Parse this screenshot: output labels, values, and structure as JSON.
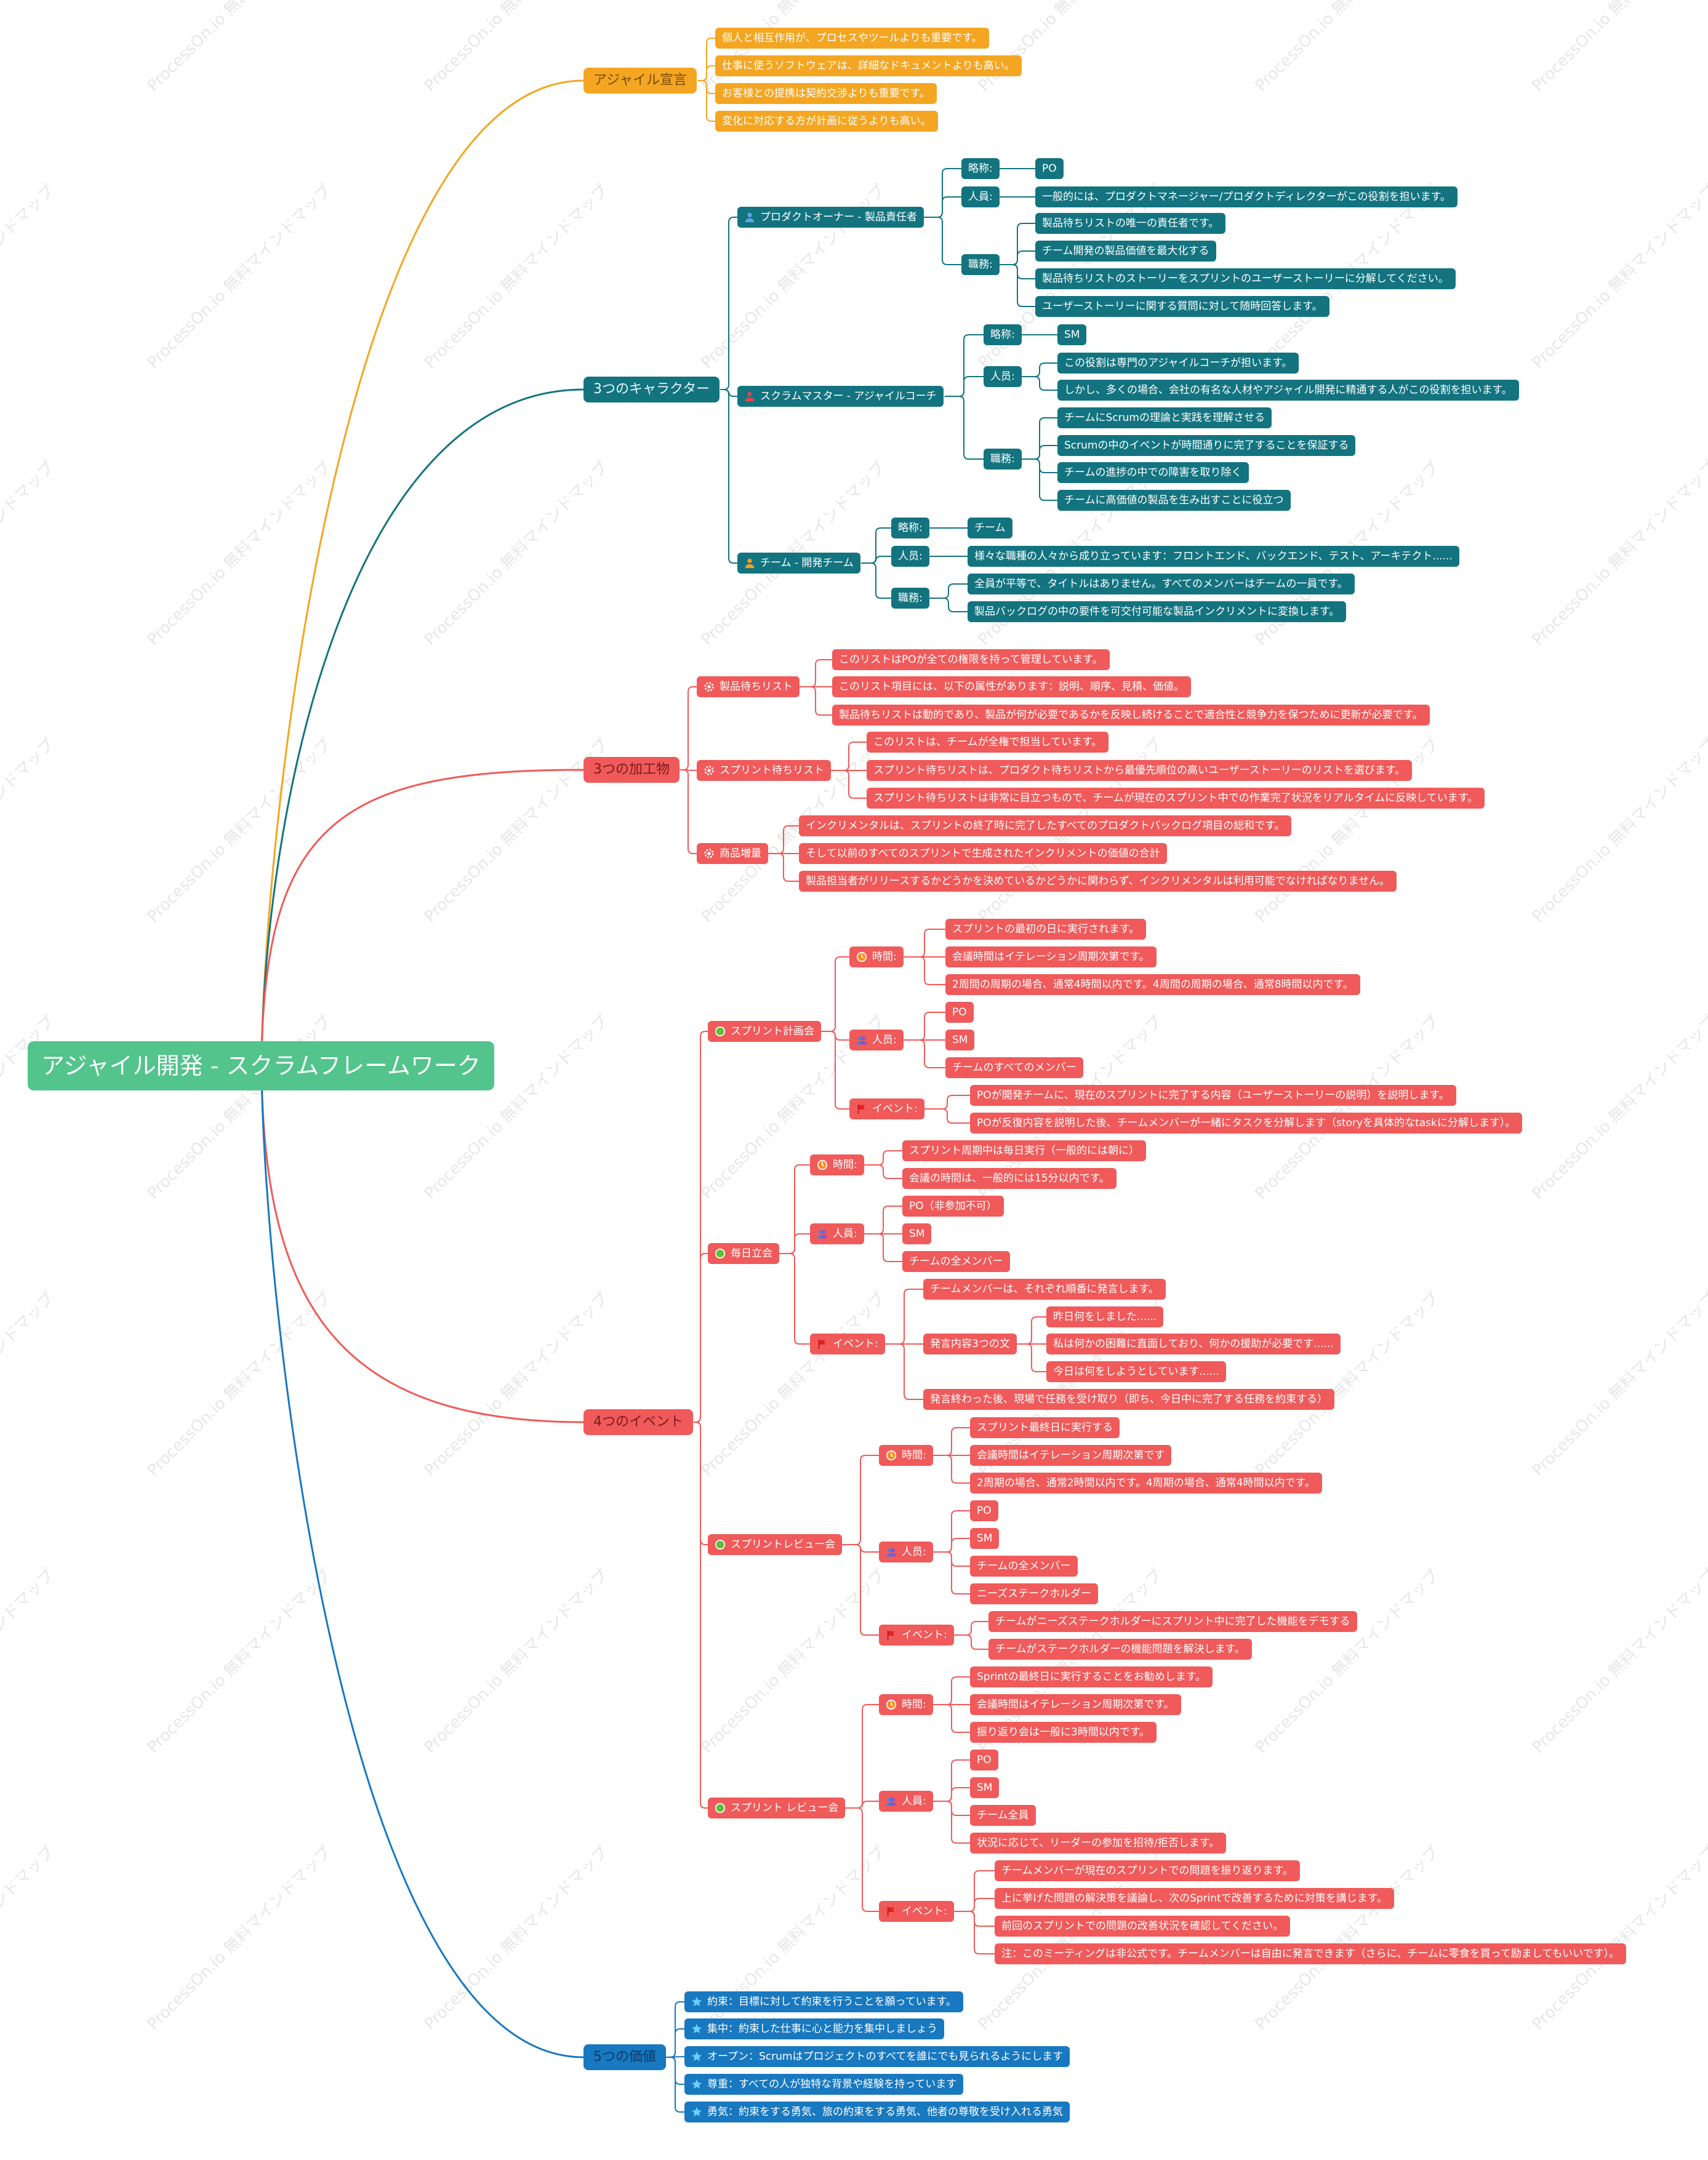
{
  "root": {
    "label": "アジャイル開発 - スクラムフレームワーク",
    "color": "#52c48c"
  },
  "watermark": "ProcessOn.io 無料マインドマップ",
  "branches": [
    {
      "id": "manifesto",
      "label": "アジャイル宣言",
      "color": "#f4a622",
      "text_color": "#7a4a00",
      "items": [
        {
          "label": "個人と相互作用が、プロセスやツールよりも重要です。"
        },
        {
          "label": "仕事に使うソフトウェアは、詳細なドキュメントよりも高い。"
        },
        {
          "label": "お客様との提携は契約交渉よりも重要です。"
        },
        {
          "label": "変化に対応する方が計画に従うよりも高い。"
        }
      ]
    },
    {
      "id": "roles",
      "label": "3つのキャラクター",
      "color": "#137480",
      "text_color": "#e8f7f8",
      "items": [
        {
          "label": "プロダクトオーナー - 製品責任者",
          "icon": "person-blue-icon",
          "children": [
            {
              "label": "略称:",
              "children": [
                {
                  "label": "PO"
                }
              ]
            },
            {
              "label": "人員:",
              "children": [
                {
                  "label": "一般的には、プロダクトマネージャー/プロダクトディレクターがこの役割を担います。"
                }
              ]
            },
            {
              "label": "職務:",
              "children": [
                {
                  "label": "製品待ちリストの唯一の責任者です。"
                },
                {
                  "label": "チーム開発の製品価値を最大化する"
                },
                {
                  "label": "製品待ちリストのストーリーをスプリントのユーザーストーリーに分解してください。"
                },
                {
                  "label": "ユーザーストーリーに関する質問に対して随時回答します。"
                }
              ]
            }
          ]
        },
        {
          "label": "スクラムマスター - アジャイルコーチ",
          "icon": "person-red-icon",
          "children": [
            {
              "label": "略称:",
              "children": [
                {
                  "label": "SM"
                }
              ]
            },
            {
              "label": "人员:",
              "children": [
                {
                  "label": "この役割は専門のアジャイルコーチが担います。"
                },
                {
                  "label": "しかし、多くの場合、会社の有名な人材やアジャイル開発に精通する人がこの役割を担います。"
                }
              ]
            },
            {
              "label": "職務:",
              "children": [
                {
                  "label": "チームにScrumの理論と実践を理解させる"
                },
                {
                  "label": "Scrumの中のイベントが時間通りに完了することを保証する"
                },
                {
                  "label": "チームの進捗の中での障害を取り除く"
                },
                {
                  "label": "チームに高価値の製品を生み出すことに役立つ"
                }
              ]
            }
          ]
        },
        {
          "label": "チーム - 開発チーム",
          "icon": "person-orange-icon",
          "children": [
            {
              "label": "略称:",
              "children": [
                {
                  "label": "チーム"
                }
              ]
            },
            {
              "label": "人员:",
              "children": [
                {
                  "label": "様々な職種の人々から成り立っています：フロントエンド、バックエンド、テスト、アーキテクト......"
                }
              ]
            },
            {
              "label": "職務:",
              "children": [
                {
                  "label": "全員が平等で、タイトルはありません。すべてのメンバーはチームの一員です。"
                },
                {
                  "label": "製品バックログの中の要件を可交付可能な製品インクリメントに変換します。"
                }
              ]
            }
          ]
        }
      ]
    },
    {
      "id": "artifacts",
      "label": "3つの加工物",
      "color": "#f05a5a",
      "text_color": "#7a1a1a",
      "items": [
        {
          "label": "製品待ちリスト",
          "icon": "gear-icon",
          "children": [
            {
              "label": "このリストはPOが全ての権限を持って管理しています。"
            },
            {
              "label": "このリスト項目には、以下の属性があります：説明、順序、見積、価値。"
            },
            {
              "label": "製品待ちリストは動的であり、製品が何が必要であるかを反映し続けることで適合性と競争力を保つために更新が必要です。"
            }
          ]
        },
        {
          "label": "スプリント待ちリスト",
          "icon": "gear-icon",
          "children": [
            {
              "label": "このリストは、チームが全権で担当しています。"
            },
            {
              "label": "スプリント待ちリストは、プロダクト待ちリストから最優先順位の高いユーザーストーリーのリストを選びます。"
            },
            {
              "label": "スプリント待ちリストは非常に目立つもので、チームが現在のスプリント中での作業完了状況をリアルタイムに反映しています。"
            }
          ]
        },
        {
          "label": "商品増量",
          "icon": "gear-icon",
          "children": [
            {
              "label": "インクリメンタルは、スプリントの終了時に完了したすべてのプロダクトバックログ項目の総和です。"
            },
            {
              "label": "そして以前のすべてのスプリントで生成されたインクリメントの価値の合計"
            },
            {
              "label": "製品担当者がリリースするかどうかを決めているかどうかに関わらず、インクリメンタルは利用可能でなければなりません。"
            }
          ]
        }
      ]
    },
    {
      "id": "events",
      "label": "4つのイベント",
      "color": "#f05a5a",
      "text_color": "#7a1a1a",
      "items": [
        {
          "label": "スプリント計画会",
          "icon": "green-dot-icon",
          "children": [
            {
              "label": "時間:",
              "icon": "clock-icon",
              "children": [
                {
                  "label": "スプリントの最初の日に実行されます。"
                },
                {
                  "label": "会議時間はイテレーション周期次第です。"
                },
                {
                  "label": "2周間の周期の場合、通常4時間以内です。4周間の周期の場合、通常8時間以内です。"
                }
              ]
            },
            {
              "label": "人员:",
              "icon": "people-icon",
              "children": [
                {
                  "label": "PO"
                },
                {
                  "label": "SM"
                },
                {
                  "label": "チームのすべてのメンバー"
                }
              ]
            },
            {
              "label": "イベント:",
              "icon": "flag-icon",
              "children": [
                {
                  "label": "POが開発チームに、現在のスプリントに完了する内容（ユーザーストーリーの説明）を説明します。"
                },
                {
                  "label": "POが反復内容を説明した後、チームメンバーが一緒にタスクを分解します（storyを具体的なtaskに分解します）。"
                }
              ]
            }
          ]
        },
        {
          "label": "毎日立会",
          "icon": "green-dot-icon",
          "children": [
            {
              "label": "時間:",
              "icon": "clock-icon",
              "children": [
                {
                  "label": "スプリント周期中は毎日実行（一般的には朝に）"
                },
                {
                  "label": "会議の時間は、一般的には15分以内です。"
                }
              ]
            },
            {
              "label": "人員:",
              "icon": "people-icon",
              "children": [
                {
                  "label": "PO（非参加不可）"
                },
                {
                  "label": "SM"
                },
                {
                  "label": "チームの全メンバー"
                }
              ]
            },
            {
              "label": "イベント:",
              "icon": "flag-icon",
              "children": [
                {
                  "label": "チームメンバーは、それぞれ順番に発言します。"
                },
                {
                  "label": "発言内容3つの文",
                  "children": [
                    {
                      "label": "昨日何をしました......"
                    },
                    {
                      "label": "私は何かの困難に直面しており、何かの援助が必要です......"
                    },
                    {
                      "label": "今日は何をしようとしています......"
                    }
                  ]
                },
                {
                  "label": "発言終わった後、現場で任務を受け取り（即ち、今日中に完了する任務を約束する）"
                }
              ]
            }
          ]
        },
        {
          "label": "スプリントレビュー会",
          "icon": "green-dot-icon",
          "children": [
            {
              "label": "時間:",
              "icon": "clock-icon",
              "children": [
                {
                  "label": "スプリント最終日に実行する"
                },
                {
                  "label": "会議時間はイテレーション周期次第です"
                },
                {
                  "label": "2周期の場合、通常2時間以内です。4周期の場合、通常4時間以内です。"
                }
              ]
            },
            {
              "label": "人员:",
              "icon": "people-icon",
              "children": [
                {
                  "label": "PO"
                },
                {
                  "label": "SM"
                },
                {
                  "label": "チームの全メンバー"
                },
                {
                  "label": "ニーズステークホルダー"
                }
              ]
            },
            {
              "label": "イベント:",
              "icon": "flag-icon",
              "children": [
                {
                  "label": "チームがニーズステークホルダーにスプリント中に完了した機能をデモする"
                },
                {
                  "label": "チームがステークホルダーの機能問題を解決します。"
                }
              ]
            }
          ]
        },
        {
          "label": "スプリント レビュー会",
          "icon": "green-dot-icon",
          "children": [
            {
              "label": "時間:",
              "icon": "clock-icon",
              "children": [
                {
                  "label": "Sprintの最終日に実行することをお勧めします。"
                },
                {
                  "label": "会議時間はイテレーション周期次第です。"
                },
                {
                  "label": "振り返り会は一般に3時間以内です。"
                }
              ]
            },
            {
              "label": "人員:",
              "icon": "people-icon",
              "children": [
                {
                  "label": "PO"
                },
                {
                  "label": "SM"
                },
                {
                  "label": "チーム全員"
                },
                {
                  "label": "状況に応じて、リーダーの参加を招待/拒否します。"
                }
              ]
            },
            {
              "label": "イベント:",
              "icon": "flag-icon",
              "children": [
                {
                  "label": "チームメンバーが現在のスプリントでの問題を振り返ります。"
                },
                {
                  "label": "上に挙げた問題の解決策を議論し、次のSprintで改善するために対策を講じます。"
                },
                {
                  "label": "前回のスプリントでの問題の改善状況を確認してください。"
                },
                {
                  "label": "注：このミーティングは非公式です。チームメンバーは自由に発言できます（さらに、チームに零食を買って励ましてもいいです）。"
                }
              ]
            }
          ]
        }
      ]
    },
    {
      "id": "values",
      "label": "5つの価値",
      "color": "#1878c0",
      "text_color": "#0d3a66",
      "items": [
        {
          "label": "約束：目標に対して約束を行うことを願っています。",
          "icon": "star-icon"
        },
        {
          "label": "集中：約束した仕事に心と能力を集中しましょう",
          "icon": "star-icon"
        },
        {
          "label": "オープン：Scrumはプロジェクトのすべてを誰にでも見られるようにします",
          "icon": "star-icon"
        },
        {
          "label": "尊重：すべての人が独特な背景や経験を持っています",
          "icon": "star-icon"
        },
        {
          "label": "勇気：約束をする勇気、旅の約束をする勇気、他者の尊敬を受け入れる勇気",
          "icon": "star-icon"
        }
      ]
    }
  ]
}
